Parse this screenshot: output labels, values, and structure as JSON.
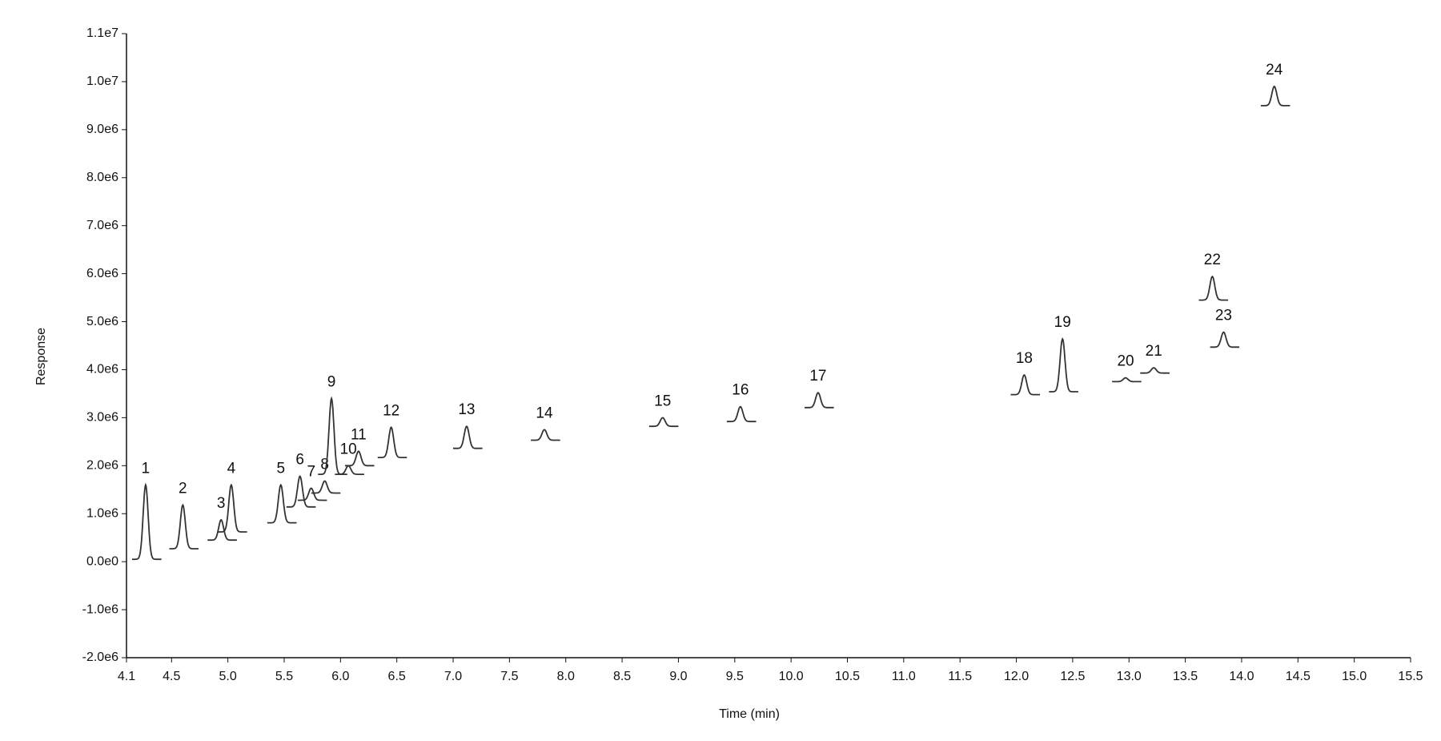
{
  "chart_data": {
    "type": "chromatogram",
    "x_label": "Time (min)",
    "y_label": "Response",
    "xlim": [
      4.1,
      15.5
    ],
    "xticks": [
      4.1,
      4.5,
      {
        "value": 5,
        "label": "5.0"
      },
      5.5,
      {
        "value": 6,
        "label": "6.0"
      },
      6.5,
      {
        "value": 7,
        "label": "7.0"
      },
      7.5,
      {
        "value": 8,
        "label": "8.0"
      },
      8.5,
      {
        "value": 9,
        "label": "9.0"
      },
      9.5,
      {
        "value": 10,
        "label": "10.0"
      },
      10.5,
      {
        "value": 11,
        "label": "11.0"
      },
      11.5,
      {
        "value": 12,
        "label": "12.0"
      },
      12.5,
      {
        "value": 13,
        "label": "13.0"
      },
      13.5,
      {
        "value": 14,
        "label": "14.0"
      },
      14.5,
      {
        "value": 15,
        "label": "15.0"
      },
      15.5
    ],
    "ylim": [
      -2000000,
      11000000
    ],
    "yticks": [
      {
        "value": -2000000,
        "label": "-2.0e6"
      },
      {
        "value": -1000000,
        "label": "-1.0e6"
      },
      {
        "value": 0,
        "label": "0.0e0"
      },
      {
        "value": 1000000,
        "label": "1.0e6"
      },
      {
        "value": 2000000,
        "label": "2.0e6"
      },
      {
        "value": 3000000,
        "label": "3.0e6"
      },
      {
        "value": 4000000,
        "label": "4.0e6"
      },
      {
        "value": 5000000,
        "label": "5.0e6"
      },
      {
        "value": 6000000,
        "label": "6.0e6"
      },
      {
        "value": 7000000,
        "label": "7.0e6"
      },
      {
        "value": 8000000,
        "label": "8.0e6"
      },
      {
        "value": 9000000,
        "label": "9.0e6"
      },
      {
        "value": 10000000,
        "label": "1.0e7"
      },
      {
        "value": 11000000,
        "label": "1.1e7"
      }
    ],
    "color": "#333333",
    "peaks": [
      {
        "label": "1",
        "x": 4.27,
        "apex": 1600000,
        "base": 50000
      },
      {
        "label": "2",
        "x": 4.6,
        "apex": 1180000,
        "base": 270000
      },
      {
        "label": "3",
        "x": 4.94,
        "apex": 870000,
        "base": 450000
      },
      {
        "label": "4",
        "x": 5.03,
        "apex": 1600000,
        "base": 620000
      },
      {
        "label": "5",
        "x": 5.47,
        "apex": 1600000,
        "base": 810000
      },
      {
        "label": "6",
        "x": 5.64,
        "apex": 1780000,
        "base": 1140000
      },
      {
        "label": "7",
        "x": 5.74,
        "apex": 1530000,
        "base": 1280000
      },
      {
        "label": "8",
        "x": 5.86,
        "apex": 1680000,
        "base": 1430000
      },
      {
        "label": "9",
        "x": 5.92,
        "apex": 3400000,
        "base": 1820000
      },
      {
        "label": "10",
        "x": 6.07,
        "apex": 2000000,
        "base": 1820000
      },
      {
        "label": "11",
        "x": 6.16,
        "apex": 2300000,
        "base": 2000000
      },
      {
        "label": "12",
        "x": 6.45,
        "apex": 2800000,
        "base": 2170000
      },
      {
        "label": "13",
        "x": 7.12,
        "apex": 2820000,
        "base": 2360000
      },
      {
        "label": "14",
        "x": 7.81,
        "apex": 2750000,
        "base": 2530000
      },
      {
        "label": "15",
        "x": 8.86,
        "apex": 3000000,
        "base": 2820000
      },
      {
        "label": "16",
        "x": 9.55,
        "apex": 3230000,
        "base": 2920000
      },
      {
        "label": "17",
        "x": 10.24,
        "apex": 3520000,
        "base": 3210000
      },
      {
        "label": "18",
        "x": 12.07,
        "apex": 3890000,
        "base": 3480000
      },
      {
        "label": "19",
        "x": 12.41,
        "apex": 4640000,
        "base": 3540000
      },
      {
        "label": "20",
        "x": 12.97,
        "apex": 3830000,
        "base": 3750000
      },
      {
        "label": "21",
        "x": 13.22,
        "apex": 4040000,
        "base": 3930000
      },
      {
        "label": "22",
        "x": 13.74,
        "apex": 5940000,
        "base": 5450000
      },
      {
        "label": "23",
        "x": 13.84,
        "apex": 4780000,
        "base": 4470000
      },
      {
        "label": "24",
        "x": 14.29,
        "apex": 9900000,
        "base": 9500000
      }
    ]
  }
}
